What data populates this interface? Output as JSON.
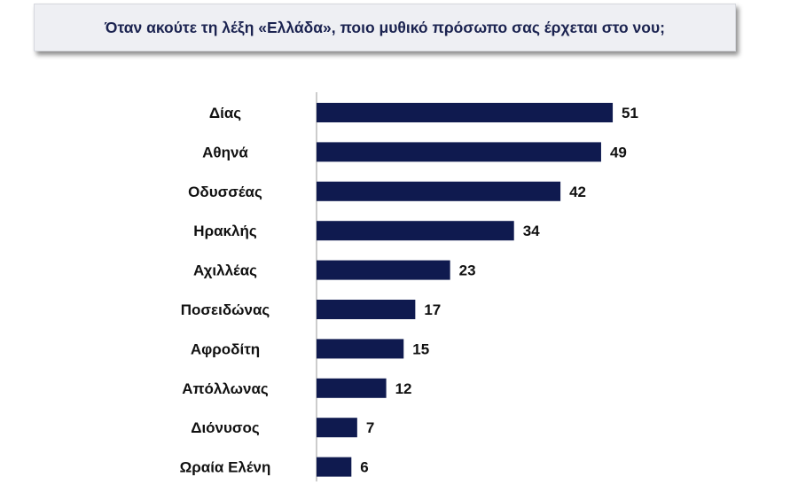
{
  "title": "Όταν ακούτε τη λέξη «Ελλάδα», ποιο μυθικό πρόσωπο σας έρχεται στο νου;",
  "colors": {
    "bar": "#0f1a4f",
    "title_background": "#eeeff3",
    "title_text": "#1b2350"
  },
  "chart_data": {
    "type": "bar",
    "orientation": "horizontal",
    "title": "Όταν ακούτε τη λέξη «Ελλάδα», ποιο μυθικό πρόσωπο σας έρχεται στο νου;",
    "categories": [
      "Δίας",
      "Αθηνά",
      "Οδυσσέας",
      "Ηρακλής",
      "Αχιλλέας",
      "Ποσειδώνας",
      "Αφροδίτη",
      "Απόλλωνας",
      "Διόνυσος",
      "Ωραία Ελένη"
    ],
    "values": [
      51,
      49,
      42,
      34,
      23,
      17,
      15,
      12,
      7,
      6
    ],
    "value_labels": [
      "51",
      "49",
      "42",
      "34",
      "23",
      "17",
      "15",
      "12",
      "7",
      "6"
    ],
    "xlabel": "",
    "ylabel": "",
    "grid": false,
    "legend": false
  }
}
